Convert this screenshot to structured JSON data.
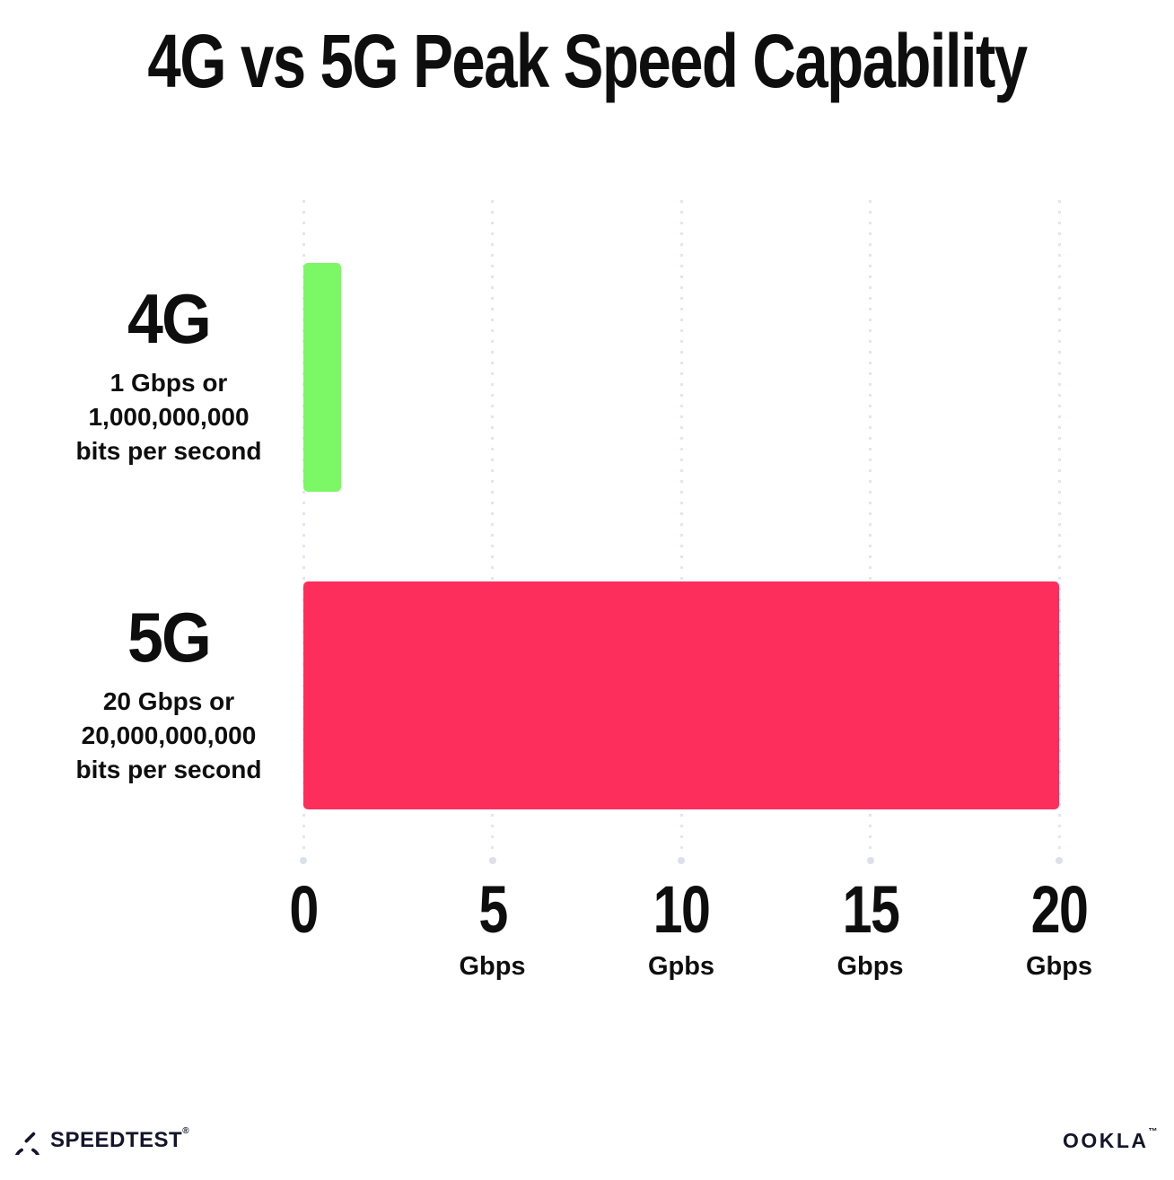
{
  "chart_data": {
    "type": "bar",
    "orientation": "horizontal",
    "title": "4G vs 5G Peak Speed Capability",
    "categories": [
      "4G",
      "5G"
    ],
    "values": [
      1,
      20
    ],
    "value_unit": "Gbps",
    "sublabels": [
      [
        "1 Gbps or",
        "1,000,000,000",
        "bits per second"
      ],
      [
        "20 Gbps or",
        "20,000,000,000",
        "bits per second"
      ]
    ],
    "bar_colors": [
      "#7CF766",
      "#FE2E5C"
    ],
    "xlim": [
      0,
      20
    ],
    "xticks": [
      {
        "label": "0",
        "unit": ""
      },
      {
        "label": "5",
        "unit": "Gbps"
      },
      {
        "label": "10",
        "unit": "Gpbs"
      },
      {
        "label": "15",
        "unit": "Gbps"
      },
      {
        "label": "20",
        "unit": "Gbps"
      }
    ],
    "grid": "vertical-dotted",
    "legend": "none"
  },
  "footer": {
    "speedtest_wordmark": "SPEEDTEST",
    "speedtest_trademark": "®",
    "speedtest_icon": "speedometer-gauge-icon",
    "ookla_wordmark": "OOKLA",
    "ookla_trademark": "™"
  }
}
